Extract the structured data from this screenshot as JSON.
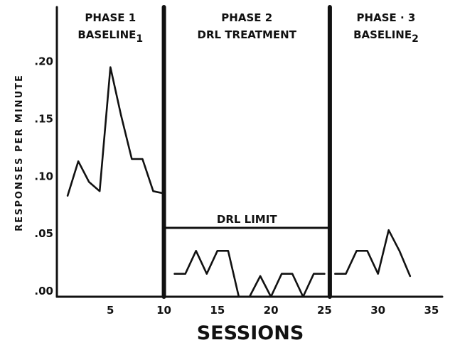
{
  "chart_data": {
    "type": "line",
    "xlabel": "SESSIONS",
    "ylabel": "RESPONSES PER MINUTE",
    "xlim": [
      0,
      36
    ],
    "ylim": [
      0,
      0.24
    ],
    "x_ticks": [
      5,
      10,
      15,
      20,
      25,
      30,
      35
    ],
    "x_tick_labels": [
      "5",
      "10",
      "15",
      "20",
      "25",
      "30",
      "35"
    ],
    "y_ticks": [
      0,
      0.05,
      0.1,
      0.15,
      0.2
    ],
    "y_tick_labels": [
      ".00",
      ".05",
      ".10",
      ".15",
      ".20"
    ],
    "phase_boundaries": [
      10,
      25.5
    ],
    "phases": [
      {
        "title": "PHASE 1",
        "subtitle": "BASELINE",
        "subscript": "1"
      },
      {
        "title": "PHASE 2",
        "subtitle": "DRL TREATMENT",
        "subscript": ""
      },
      {
        "title": "PHASE · 3",
        "subtitle": "BASELINE",
        "subscript": "2"
      }
    ],
    "series": [
      {
        "x": [
          1,
          2,
          3,
          4,
          5,
          6,
          7,
          8,
          9,
          10
        ],
        "y": [
          0.088,
          0.118,
          0.1,
          0.092,
          0.2,
          0.158,
          0.12,
          0.12,
          0.092,
          0.09
        ]
      },
      {
        "x": [
          11,
          12,
          13,
          14,
          15,
          16,
          17,
          18,
          19,
          20,
          21,
          22,
          23,
          24,
          25
        ],
        "y": [
          0.02,
          0.02,
          0.04,
          0.02,
          0.04,
          0.04,
          0.0,
          0.0,
          0.018,
          0.0,
          0.02,
          0.02,
          0.0,
          0.02,
          0.02
        ]
      },
      {
        "x": [
          26,
          27,
          28,
          29,
          30,
          31,
          32,
          33
        ],
        "y": [
          0.02,
          0.02,
          0.04,
          0.04,
          0.02,
          0.058,
          0.04,
          0.018
        ]
      }
    ],
    "reference_line": {
      "label": "DRL LIMIT",
      "y": 0.06,
      "x_start": 10,
      "x_end": 25.5
    },
    "grid": false,
    "legend": "none"
  }
}
